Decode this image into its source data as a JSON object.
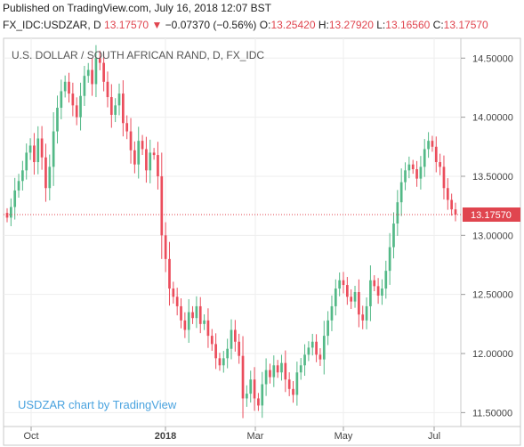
{
  "header": {
    "published": "Published on TradingView.com, July 16, 2018 12:07 BST",
    "symbol": "FX_IDC:USDZAR, D",
    "last": "13.17570",
    "change_arrow": "▼",
    "change": "−0.07370 (−0.56%)",
    "ohlc": [
      {
        "k": "O:",
        "v": "13.25420"
      },
      {
        "k": "H:",
        "v": "13.27920"
      },
      {
        "k": "L:",
        "v": "13.16560"
      },
      {
        "k": "C:",
        "v": "13.17570"
      }
    ]
  },
  "chart_data": {
    "type": "candlestick",
    "title": "U.S. DOLLAR / SOUTH AFRICAN RAND, D, FX_IDC",
    "watermark": "USDZAR chart by TradingView",
    "y_ticks": [
      "14.50000",
      "14.00000",
      "13.50000",
      "13.00000",
      "12.50000",
      "12.00000",
      "11.50000"
    ],
    "x_ticks": [
      "Oct",
      "2018",
      "Mar",
      "May",
      "Jul"
    ],
    "ylim": [
      11.45,
      14.6
    ],
    "last_price": 13.1757,
    "last_price_label": "13.17570",
    "colors": {
      "up": "#53b987",
      "down": "#eb4d5c",
      "last": "#e0454f"
    },
    "closes": [
      13.15,
      13.24,
      13.38,
      13.46,
      13.55,
      13.7,
      13.76,
      13.62,
      13.82,
      13.66,
      13.4,
      13.58,
      13.88,
      14.08,
      14.22,
      14.3,
      14.2,
      14.1,
      14.0,
      14.18,
      14.35,
      14.4,
      14.28,
      14.5,
      14.46,
      14.3,
      14.17,
      14.02,
      14.1,
      14.2,
      13.95,
      13.88,
      13.72,
      13.6,
      13.8,
      13.73,
      13.55,
      13.7,
      13.68,
      13.5,
      13.0,
      12.8,
      12.55,
      12.48,
      12.4,
      12.28,
      12.2,
      12.35,
      12.3,
      12.4,
      12.25,
      12.28,
      12.15,
      12.08,
      11.96,
      11.9,
      11.96,
      12.04,
      12.2,
      12.1,
      11.98,
      11.62,
      11.66,
      11.78,
      11.62,
      11.56,
      11.74,
      11.86,
      11.8,
      11.9,
      11.84,
      11.92,
      11.78,
      11.7,
      11.65,
      11.84,
      11.9,
      11.99,
      12.05,
      12.1,
      11.99,
      11.95,
      12.15,
      12.28,
      12.4,
      12.55,
      12.62,
      12.58,
      12.48,
      12.44,
      12.52,
      12.33,
      12.28,
      12.4,
      12.62,
      12.57,
      12.49,
      12.55,
      12.7,
      12.9,
      13.1,
      13.28,
      13.45,
      13.55,
      13.6,
      13.56,
      13.48,
      13.58,
      13.73,
      13.8,
      13.75,
      13.62,
      13.58,
      13.4,
      13.3,
      13.22,
      13.1757
    ]
  }
}
